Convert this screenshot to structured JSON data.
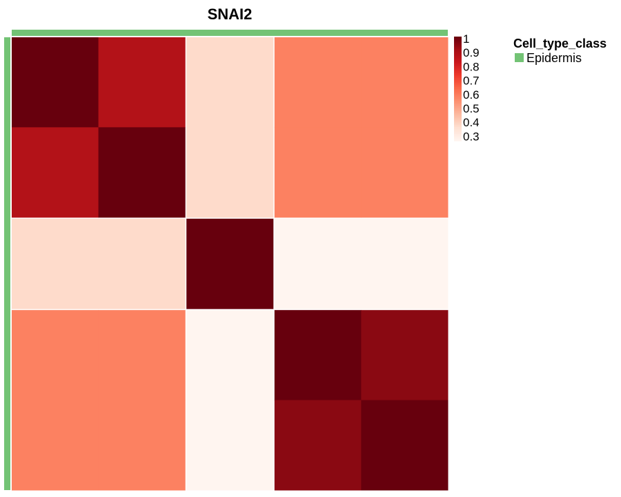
{
  "chart_data": {
    "type": "heatmap",
    "title": "SNAI2",
    "rows": 5,
    "cols": 5,
    "col_widths": [
      1,
      1,
      1,
      1,
      1
    ],
    "row_heights": [
      1,
      1,
      1,
      1,
      1
    ],
    "values": [
      [
        1.0,
        0.88,
        0.4,
        0.6,
        0.6
      ],
      [
        0.88,
        1.0,
        0.4,
        0.6,
        0.6
      ],
      [
        0.4,
        0.4,
        1.0,
        0.3,
        0.3
      ],
      [
        0.6,
        0.6,
        0.3,
        1.0,
        0.95
      ],
      [
        0.6,
        0.6,
        0.3,
        0.95,
        1.0
      ]
    ],
    "colorbar": {
      "ticks": [
        "1",
        "0.9",
        "0.8",
        "0.7",
        "0.6",
        "0.5",
        "0.4",
        "0.3"
      ],
      "range": [
        0.3,
        1.0
      ],
      "colors": [
        "#fff5f0",
        "#fee0d2",
        "#fcbba1",
        "#fc9272",
        "#fb6a4a",
        "#ef3b2c",
        "#cb181d",
        "#a50f15",
        "#67000d"
      ]
    },
    "annotation": {
      "title": "Cell_type_class",
      "entries": [
        {
          "label": "Epidermis",
          "color": "#73c375"
        }
      ]
    }
  }
}
